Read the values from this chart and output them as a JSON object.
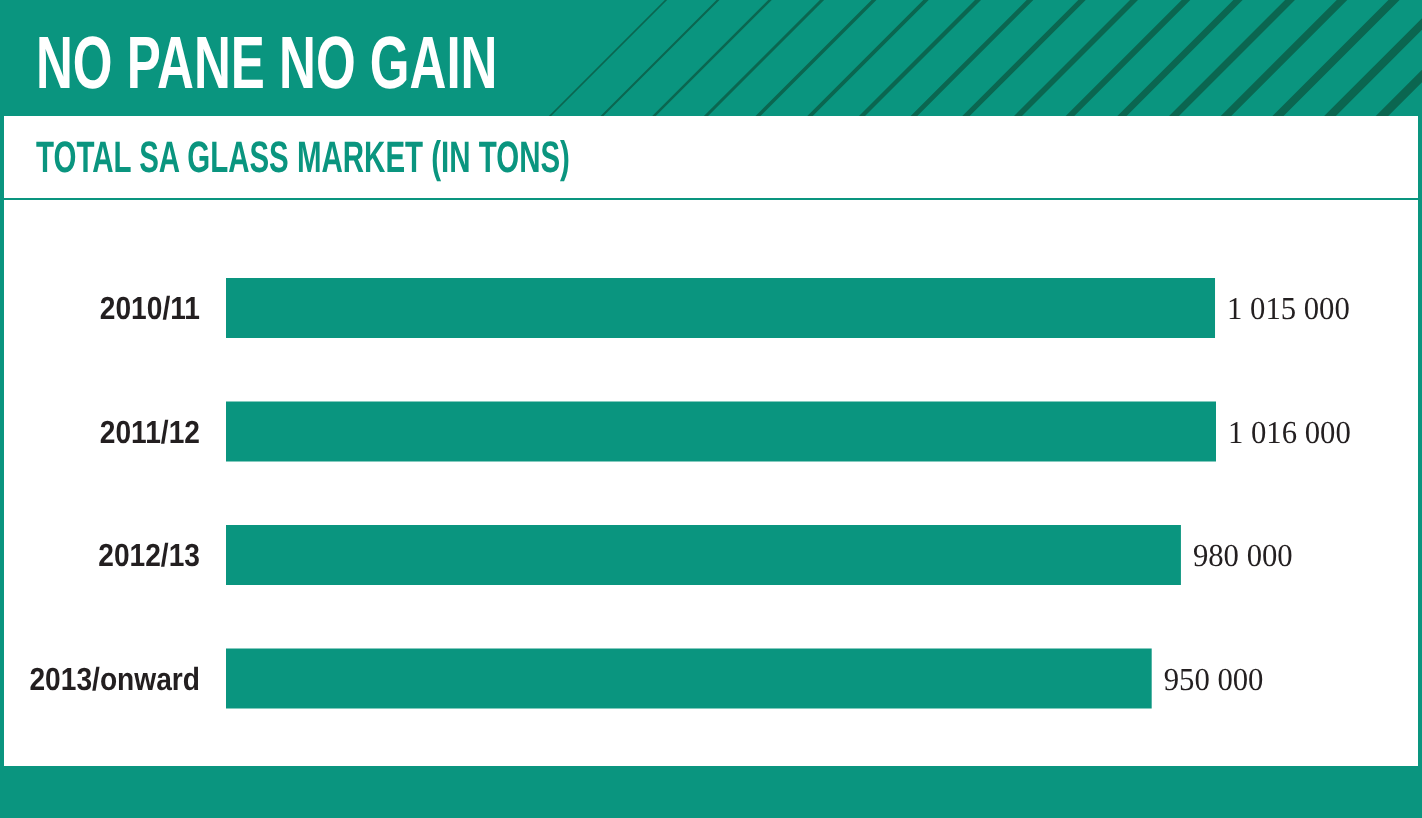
{
  "chart_data": {
    "type": "bar",
    "title": "NO PANE NO GAIN",
    "subtitle": "TOTAL SA GLASS MARKET (IN TONS)",
    "orientation": "horizontal",
    "categories": [
      "2010/11",
      "2011/12",
      "2012/13",
      "2013/onward"
    ],
    "values": [
      1015000,
      1016000,
      980000,
      950000
    ],
    "color": "#0a957f",
    "value_labels": [
      "1 015 000",
      "1 016 000",
      "980 000",
      "950 000"
    ],
    "tick_labels": "y"
  }
}
